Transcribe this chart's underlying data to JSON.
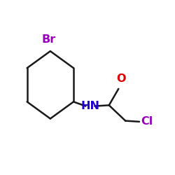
{
  "bg_color": "#ffffff",
  "bond_color": "#1a1a1a",
  "bond_lw": 1.8,
  "Br_color": "#9900bb",
  "Cl_color": "#9900bb",
  "NH_color": "#2200cc",
  "O_color": "#dd0000",
  "figsize": [
    2.5,
    2.5
  ],
  "dpi": 100,
  "Br_label": "Br",
  "Br_fontsize": 11.5,
  "NH_label": "HN",
  "NH_fontsize": 11.5,
  "O_label": "O",
  "O_fontsize": 11.5,
  "Cl_label": "Cl",
  "Cl_fontsize": 11.5
}
